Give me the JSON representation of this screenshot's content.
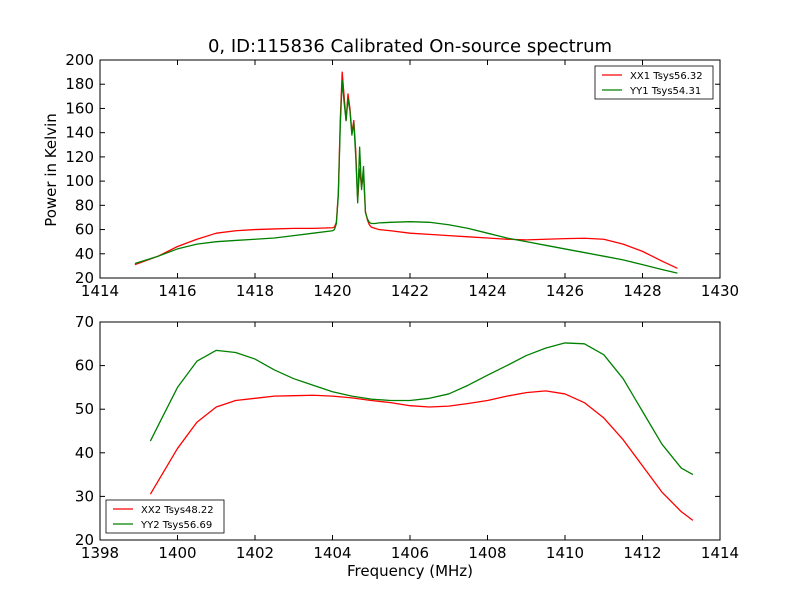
{
  "chart_data": [
    {
      "type": "line",
      "title": "0, ID:115836 Calibrated On-source spectrum",
      "xlabel": "",
      "ylabel": "Power in Kelvin",
      "xlim": [
        1414,
        1430
      ],
      "ylim": [
        20,
        200
      ],
      "xticks": [
        1414,
        1416,
        1418,
        1420,
        1422,
        1424,
        1426,
        1428,
        1430
      ],
      "yticks": [
        20,
        40,
        60,
        80,
        100,
        120,
        140,
        160,
        180,
        200
      ],
      "legend": "top-right",
      "series": [
        {
          "name": "XX1 Tsys56.32",
          "color": "#ff0000",
          "x": [
            1414.9,
            1415.5,
            1416.0,
            1416.5,
            1417.0,
            1417.5,
            1418.0,
            1418.5,
            1419.0,
            1419.5,
            1420.0,
            1420.05,
            1420.1,
            1420.15,
            1420.2,
            1420.25,
            1420.3,
            1420.35,
            1420.4,
            1420.45,
            1420.5,
            1420.55,
            1420.6,
            1420.65,
            1420.7,
            1420.75,
            1420.8,
            1420.85,
            1420.9,
            1420.95,
            1421.0,
            1421.1,
            1421.2,
            1421.5,
            1422.0,
            1422.5,
            1423.0,
            1423.5,
            1424.0,
            1424.5,
            1425.0,
            1425.5,
            1426.0,
            1426.5,
            1427.0,
            1427.5,
            1428.0,
            1428.5,
            1428.9
          ],
          "y": [
            31,
            38,
            46,
            52,
            57,
            59,
            60,
            60.5,
            61,
            61,
            61.5,
            62,
            66,
            90,
            150,
            190,
            170,
            150,
            172,
            160,
            140,
            150,
            125,
            84,
            110,
            95,
            105,
            75,
            68,
            64,
            62,
            61,
            60,
            59,
            57,
            56,
            55,
            54,
            53,
            52,
            51.5,
            52,
            52.5,
            52.8,
            52,
            48,
            42,
            34,
            28
          ]
        },
        {
          "name": "YY1 Tsys54.31",
          "color": "#008000",
          "x": [
            1414.9,
            1415.5,
            1416.0,
            1416.5,
            1417.0,
            1417.5,
            1418.0,
            1418.5,
            1419.0,
            1419.5,
            1420.0,
            1420.05,
            1420.1,
            1420.15,
            1420.2,
            1420.25,
            1420.3,
            1420.35,
            1420.4,
            1420.45,
            1420.5,
            1420.55,
            1420.6,
            1420.65,
            1420.7,
            1420.75,
            1420.8,
            1420.85,
            1420.9,
            1420.95,
            1421.0,
            1421.1,
            1421.2,
            1421.5,
            1422.0,
            1422.5,
            1423.0,
            1423.5,
            1424.0,
            1424.5,
            1425.0,
            1425.5,
            1426.0,
            1426.5,
            1427.0,
            1427.5,
            1428.0,
            1428.5,
            1428.9
          ],
          "y": [
            32,
            38,
            44,
            48,
            50,
            51,
            52,
            53,
            55,
            57,
            59,
            60,
            65,
            88,
            145,
            183,
            165,
            150,
            168,
            158,
            138,
            148,
            120,
            82,
            128,
            93,
            112,
            74,
            69,
            66,
            65,
            65,
            65.5,
            66,
            66.5,
            66,
            64,
            61,
            57,
            53,
            50,
            47,
            44,
            41,
            38,
            35,
            31,
            27,
            24
          ]
        }
      ]
    },
    {
      "type": "line",
      "title": "",
      "xlabel": "Frequency (MHz)",
      "ylabel": "",
      "xlim": [
        1398,
        1414
      ],
      "ylim": [
        20,
        70
      ],
      "xticks": [
        1398,
        1400,
        1402,
        1404,
        1406,
        1408,
        1410,
        1412,
        1414
      ],
      "yticks": [
        20,
        30,
        40,
        50,
        60,
        70
      ],
      "legend": "bottom-left",
      "series": [
        {
          "name": "XX2 Tsys48.22",
          "color": "#ff0000",
          "x": [
            1399.3,
            1399.6,
            1400.0,
            1400.5,
            1401.0,
            1401.5,
            1402.0,
            1402.5,
            1403.0,
            1403.5,
            1404.0,
            1404.5,
            1405.0,
            1405.5,
            1406.0,
            1406.5,
            1407.0,
            1407.5,
            1408.0,
            1408.5,
            1409.0,
            1409.5,
            1410.0,
            1410.5,
            1411.0,
            1411.5,
            1412.0,
            1412.5,
            1413.0,
            1413.3
          ],
          "y": [
            30.5,
            35,
            41,
            47,
            50.5,
            52,
            52.5,
            53,
            53.1,
            53.2,
            53,
            52.6,
            52,
            51.5,
            50.8,
            50.5,
            50.7,
            51.3,
            52,
            53,
            53.8,
            54.2,
            53.5,
            51.5,
            48,
            43,
            37,
            31,
            26.5,
            24.5
          ]
        },
        {
          "name": "YY2 Tsys56.69",
          "color": "#008000",
          "x": [
            1399.3,
            1399.6,
            1400.0,
            1400.5,
            1401.0,
            1401.5,
            1402.0,
            1402.5,
            1403.0,
            1403.5,
            1404.0,
            1404.5,
            1405.0,
            1405.5,
            1406.0,
            1406.5,
            1407.0,
            1407.5,
            1408.0,
            1408.5,
            1409.0,
            1409.5,
            1410.0,
            1410.5,
            1411.0,
            1411.5,
            1412.0,
            1412.5,
            1413.0,
            1413.3
          ],
          "y": [
            42.7,
            48,
            55,
            61,
            63.5,
            63,
            61.5,
            59,
            57,
            55.5,
            54,
            53,
            52.3,
            52,
            52,
            52.5,
            53.5,
            55.5,
            57.8,
            60,
            62.3,
            64,
            65.2,
            65,
            62.5,
            57,
            49.5,
            42,
            36.5,
            35
          ]
        }
      ]
    }
  ]
}
